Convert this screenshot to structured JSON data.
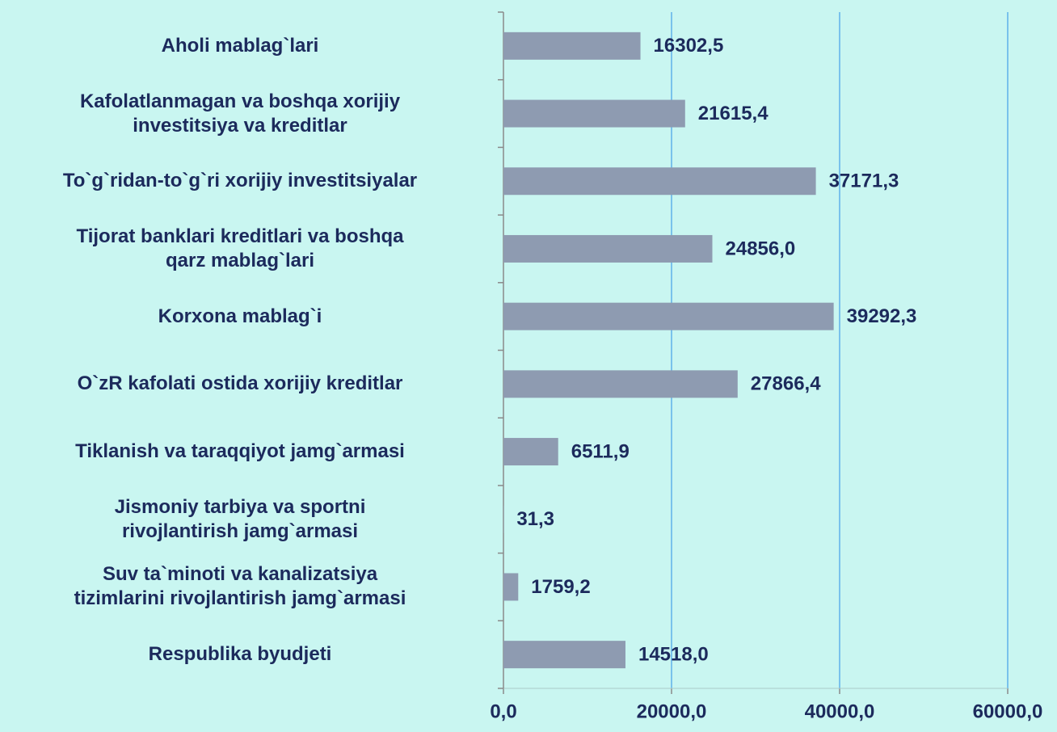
{
  "chart_data": {
    "type": "hbar",
    "categories": [
      "Aholi mablag`lari",
      "Kafolatlanmagan va boshqa xorijiy\ninvestitsiya va kreditlar",
      "To`g`ridan-to`g`ri xorijiy investitsiyalar",
      "Tijorat banklari kreditlari va  boshqa\nqarz mablag`lari",
      "Korxona mablag`i",
      "O`zR kafolati ostida xorijiy kreditlar",
      "Tiklanish va taraqqiyot jamg`armasi",
      "Jismoniy tarbiya va sportni\nrivojlantirish jamg`armasi",
      "Suv ta`minoti va kanalizatsiya\ntizimlarini rivojlantirish jamg`armasi",
      "Respublika byudjeti"
    ],
    "values": [
      16302.5,
      21615.4,
      37171.3,
      24856.0,
      39292.3,
      27866.4,
      6511.9,
      31.3,
      1759.2,
      14518.0
    ],
    "value_labels": [
      "16302,5",
      "21615,4",
      "37171,3",
      "24856,0",
      "39292,3",
      "27866,4",
      "6511,9",
      "31,3",
      "1759,2",
      "14518,0"
    ],
    "color": "#8e9bb1",
    "xlim": [
      0,
      60000
    ],
    "xticks": [
      {
        "value": 0,
        "label": "0,0"
      },
      {
        "value": 20000,
        "label": "20000,0"
      },
      {
        "value": 40000,
        "label": "40000,0"
      },
      {
        "value": 60000,
        "label": "60000,0"
      }
    ],
    "grid": true
  }
}
